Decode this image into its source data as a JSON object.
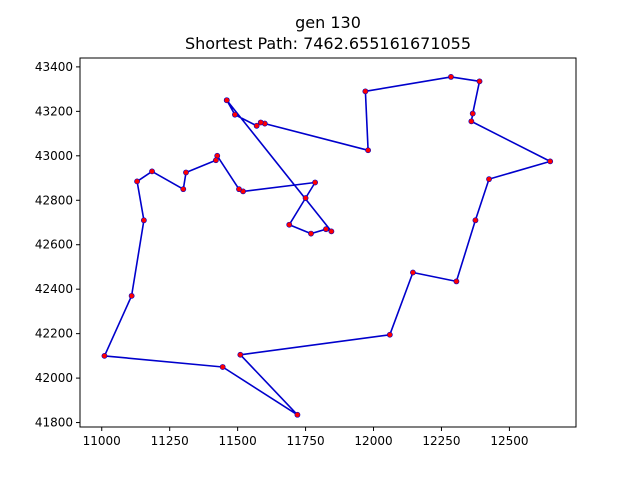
{
  "chart_data": {
    "type": "line",
    "title": "gen 130",
    "subtitle": "Shortest Path: 7462.655161671055",
    "xlabel": "",
    "ylabel": "",
    "xlim": [
      10920,
      12745
    ],
    "ylim": [
      41780,
      43440
    ],
    "xticks": [
      11000,
      11250,
      11500,
      11750,
      12000,
      12250,
      12500
    ],
    "yticks": [
      41800,
      42000,
      42200,
      42400,
      42600,
      42800,
      43000,
      43200,
      43400
    ],
    "grid": false,
    "line_color": "#0000cc",
    "marker_color": "#ff0000",
    "route": [
      {
        "x": 11460,
        "y": 43250
      },
      {
        "x": 11845,
        "y": 42660
      },
      {
        "x": 11825,
        "y": 42670
      },
      {
        "x": 11770,
        "y": 42650
      },
      {
        "x": 11690,
        "y": 42690
      },
      {
        "x": 11750,
        "y": 42810
      },
      {
        "x": 11785,
        "y": 42880
      },
      {
        "x": 11520,
        "y": 42840
      },
      {
        "x": 11505,
        "y": 42850
      },
      {
        "x": 11425,
        "y": 43000
      },
      {
        "x": 11420,
        "y": 42980
      },
      {
        "x": 11310,
        "y": 42925
      },
      {
        "x": 11300,
        "y": 42850
      },
      {
        "x": 11185,
        "y": 42930
      },
      {
        "x": 11130,
        "y": 42885
      },
      {
        "x": 11155,
        "y": 42710
      },
      {
        "x": 11110,
        "y": 42370
      },
      {
        "x": 11010,
        "y": 42100
      },
      {
        "x": 11445,
        "y": 42050
      },
      {
        "x": 11720,
        "y": 41835
      },
      {
        "x": 11510,
        "y": 42105
      },
      {
        "x": 12060,
        "y": 42195
      },
      {
        "x": 12145,
        "y": 42475
      },
      {
        "x": 12305,
        "y": 42435
      },
      {
        "x": 12375,
        "y": 42710
      },
      {
        "x": 12425,
        "y": 42895
      },
      {
        "x": 12650,
        "y": 42975
      },
      {
        "x": 12360,
        "y": 43155
      },
      {
        "x": 12365,
        "y": 43190
      },
      {
        "x": 12390,
        "y": 43335
      },
      {
        "x": 12285,
        "y": 43355
      },
      {
        "x": 11970,
        "y": 43290
      },
      {
        "x": 11980,
        "y": 43025
      },
      {
        "x": 11600,
        "y": 43145
      },
      {
        "x": 11585,
        "y": 43150
      },
      {
        "x": 11570,
        "y": 43135
      },
      {
        "x": 11490,
        "y": 43185
      },
      {
        "x": 11460,
        "y": 43250
      }
    ]
  }
}
